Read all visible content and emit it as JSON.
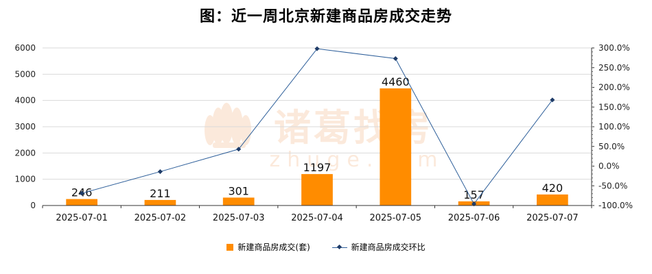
{
  "chart_data": {
    "type": "bar",
    "title": "图：近一周北京新建商品房成交走势",
    "categories": [
      "2025-07-01",
      "2025-07-02",
      "2025-07-03",
      "2025-07-04",
      "2025-07-05",
      "2025-07-06",
      "2025-07-07"
    ],
    "series": [
      {
        "name": "新建商品房成交(套)",
        "type": "bar",
        "axis": "left",
        "color": "#ff8c00",
        "values": [
          246,
          211,
          301,
          1197,
          4460,
          157,
          420
        ]
      },
      {
        "name": "新建商品房成交环比",
        "type": "line",
        "axis": "right",
        "color": "#2e5f9a",
        "values": [
          -69,
          -14,
          43,
          298,
          273,
          -96,
          168
        ]
      }
    ],
    "ylim_left": [
      0,
      6000
    ],
    "yticks_left": [
      "0",
      "1000",
      "2000",
      "3000",
      "4000",
      "5000",
      "6000"
    ],
    "ylim_right": [
      -100,
      300
    ],
    "yticks_right": [
      "-100.0%",
      "-50.0%",
      "0.0%",
      "50.0%",
      "100.0%",
      "150.0%",
      "200.0%",
      "250.0%",
      "300.0%"
    ],
    "grid": true,
    "legend": "bottom",
    "watermark": "诸葛找房 zhuge.com"
  }
}
